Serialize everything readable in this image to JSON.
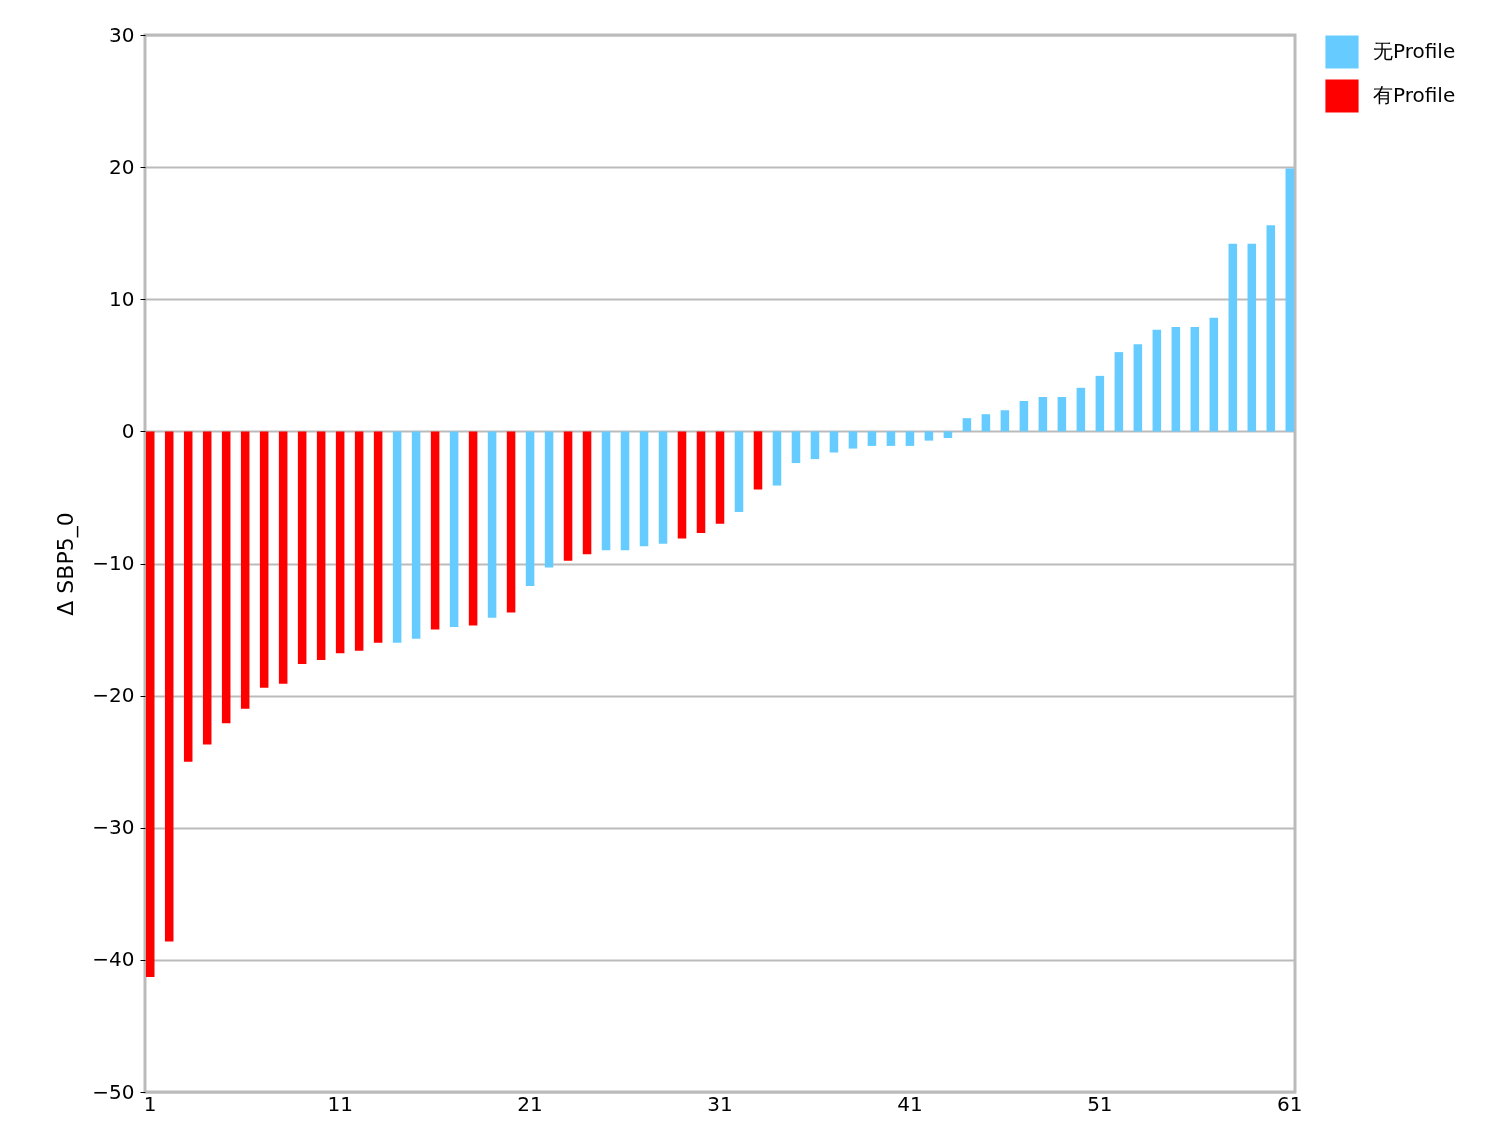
{
  "chart_data": {
    "type": "bar",
    "ylabel": "Δ SBP5_0",
    "categories": [
      "1",
      null,
      null,
      null,
      null,
      null,
      null,
      null,
      null,
      null,
      "11",
      null,
      null,
      null,
      null,
      null,
      null,
      null,
      null,
      null,
      "21",
      null,
      null,
      null,
      null,
      null,
      null,
      null,
      null,
      null,
      "31",
      null,
      null,
      null,
      null,
      null,
      null,
      null,
      null,
      null,
      "41",
      null,
      null,
      null,
      null,
      null,
      null,
      null,
      null,
      null,
      "51",
      null,
      null,
      null,
      null,
      null,
      null,
      null,
      null,
      null,
      "61"
    ],
    "series": [
      {
        "name": "无Profile",
        "color": "#66ccff",
        "values": [
          null,
          null,
          null,
          null,
          null,
          null,
          null,
          null,
          null,
          null,
          null,
          null,
          null,
          -16.0,
          -15.7,
          null,
          -14.8,
          null,
          -14.1,
          null,
          -11.7,
          -10.3,
          null,
          null,
          -9.0,
          -9.0,
          -8.7,
          -8.5,
          null,
          null,
          null,
          -6.1,
          null,
          -4.1,
          -2.4,
          -2.1,
          -1.6,
          -1.3,
          -1.1,
          -1.1,
          -1.1,
          -0.7,
          -0.5,
          1.0,
          1.3,
          1.6,
          2.3,
          2.6,
          2.6,
          3.3,
          4.2,
          6.0,
          6.6,
          7.7,
          7.9,
          7.9,
          8.6,
          14.2,
          14.2,
          15.6,
          19.9
        ]
      },
      {
        "name": "有Profile",
        "color": "#ff0000",
        "values": [
          -41.3,
          -38.6,
          -25.0,
          -23.7,
          -22.1,
          -21.0,
          -19.4,
          -19.1,
          -17.6,
          -17.3,
          -16.8,
          -16.6,
          -16.0,
          null,
          null,
          -15.0,
          null,
          -14.7,
          null,
          -13.7,
          null,
          null,
          -9.8,
          -9.3,
          null,
          null,
          null,
          null,
          -8.1,
          -7.7,
          -7.0,
          null,
          -4.4,
          null,
          null,
          null,
          null,
          null,
          null,
          null,
          null,
          null,
          null,
          null,
          null,
          null,
          null,
          null,
          null,
          null,
          null,
          null,
          null,
          null,
          null,
          null,
          null,
          null,
          null,
          null,
          null
        ]
      }
    ],
    "ylim": [
      -50,
      30
    ],
    "yticks": [
      -50,
      -40,
      -30,
      -20,
      -10,
      0,
      10,
      20,
      30
    ],
    "grid": "y",
    "legend": "right"
  }
}
